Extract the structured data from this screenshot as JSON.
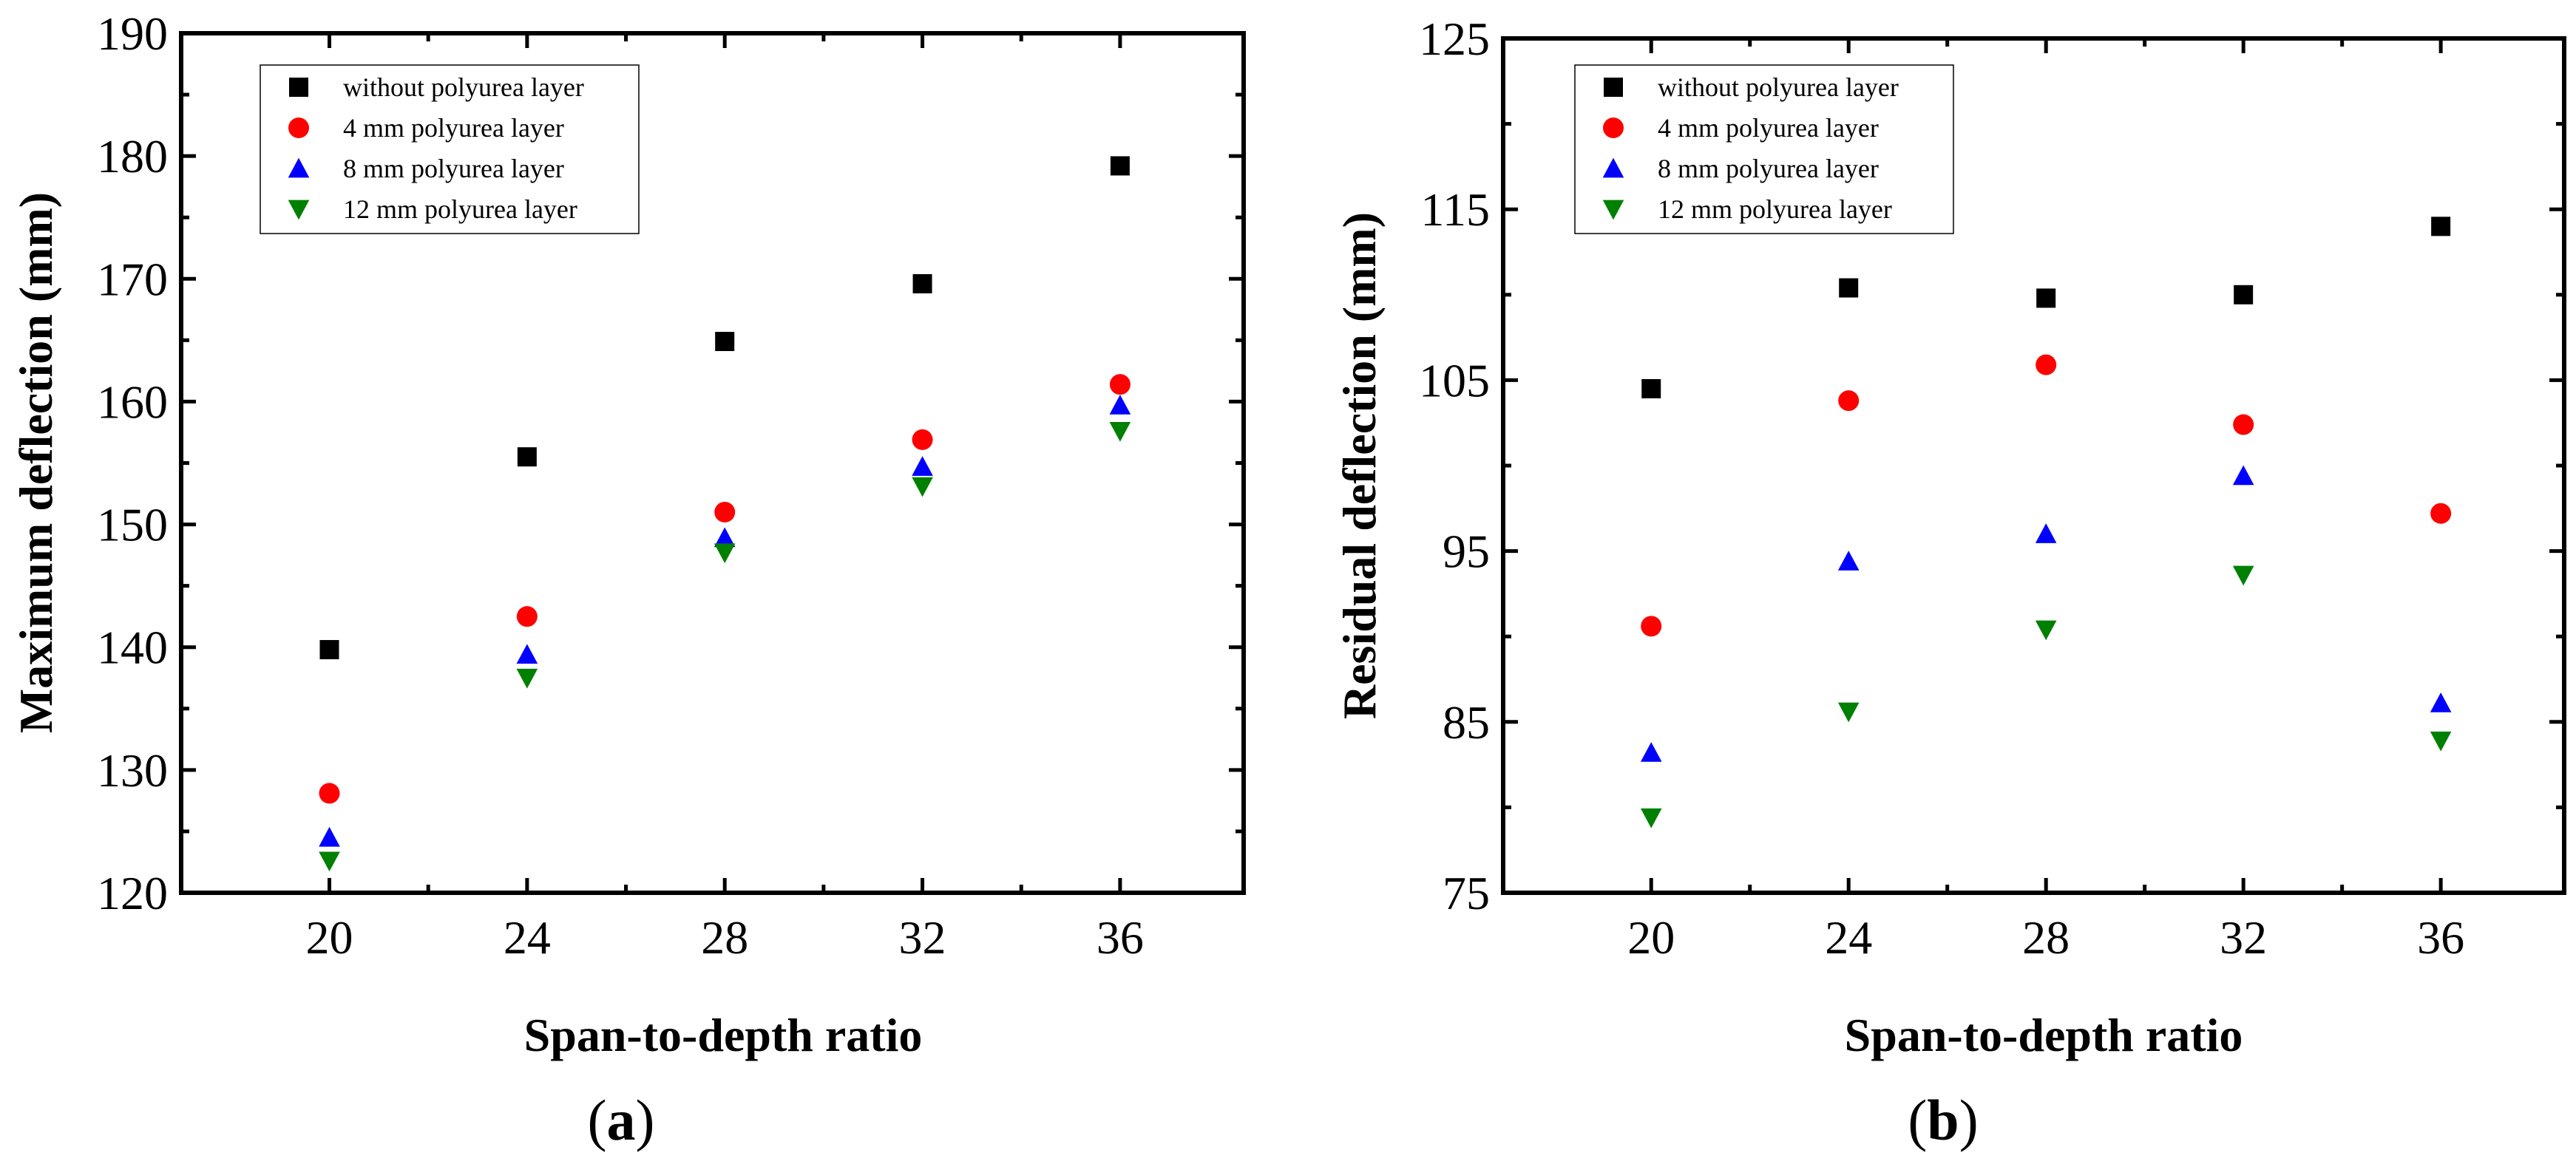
{
  "colors": {
    "without": "#000000",
    "mm4": "#ff0000",
    "mm8": "#0000ff",
    "mm12": "#008000"
  },
  "chart_data": [
    {
      "panel": "(a)",
      "panel_letter": "a",
      "type": "scatter",
      "xlabel": "Span-to-depth ratio",
      "ylabel": "Maximum deflection (mm)",
      "xlim": [
        17,
        38.5
      ],
      "ylim": [
        120,
        190
      ],
      "xticks": [
        20,
        24,
        28,
        32,
        36
      ],
      "yticks": [
        120,
        130,
        140,
        150,
        160,
        170,
        180,
        190
      ],
      "legend": "top-left",
      "x": [
        20,
        24,
        28,
        32,
        36
      ],
      "series": [
        {
          "key": "without",
          "name": "without polyurea layer",
          "marker": "square",
          "values": [
            139.8,
            155.5,
            164.9,
            169.6,
            179.2
          ]
        },
        {
          "key": "mm4",
          "name": "4 mm polyurea layer",
          "marker": "circle",
          "values": [
            128.1,
            142.5,
            151.0,
            156.9,
            161.4
          ]
        },
        {
          "key": "mm8",
          "name": "8 mm polyurea layer",
          "marker": "triangle-up",
          "values": [
            124.5,
            139.4,
            148.9,
            154.7,
            159.7
          ]
        },
        {
          "key": "mm12",
          "name": "12 mm polyurea layer",
          "marker": "triangle-down",
          "values": [
            122.6,
            137.5,
            147.7,
            153.1,
            157.6
          ]
        }
      ]
    },
    {
      "panel": "(b)",
      "panel_letter": "b",
      "type": "scatter",
      "xlabel": "Span-to-depth ratio",
      "ylabel": "Residual deflection (mm)",
      "xlim": [
        17,
        38.5
      ],
      "ylim": [
        75,
        125
      ],
      "xticks": [
        20,
        24,
        28,
        32,
        36
      ],
      "yticks": [
        75,
        85,
        95,
        105,
        115,
        125
      ],
      "legend": "top-left",
      "x": [
        20,
        24,
        28,
        32,
        36
      ],
      "series": [
        {
          "key": "without",
          "name": "without polyurea layer",
          "marker": "square",
          "values": [
            104.5,
            110.4,
            109.8,
            110.0,
            114.0
          ]
        },
        {
          "key": "mm4",
          "name": "4 mm polyurea layer",
          "marker": "circle",
          "values": [
            90.6,
            103.8,
            105.9,
            102.4,
            97.2
          ]
        },
        {
          "key": "mm8",
          "name": "8 mm polyurea layer",
          "marker": "triangle-up",
          "values": [
            83.2,
            94.4,
            96.0,
            99.4,
            86.1
          ]
        },
        {
          "key": "mm12",
          "name": "12 mm polyurea layer",
          "marker": "triangle-down",
          "values": [
            79.4,
            85.6,
            90.4,
            93.6,
            83.9
          ]
        }
      ]
    }
  ]
}
